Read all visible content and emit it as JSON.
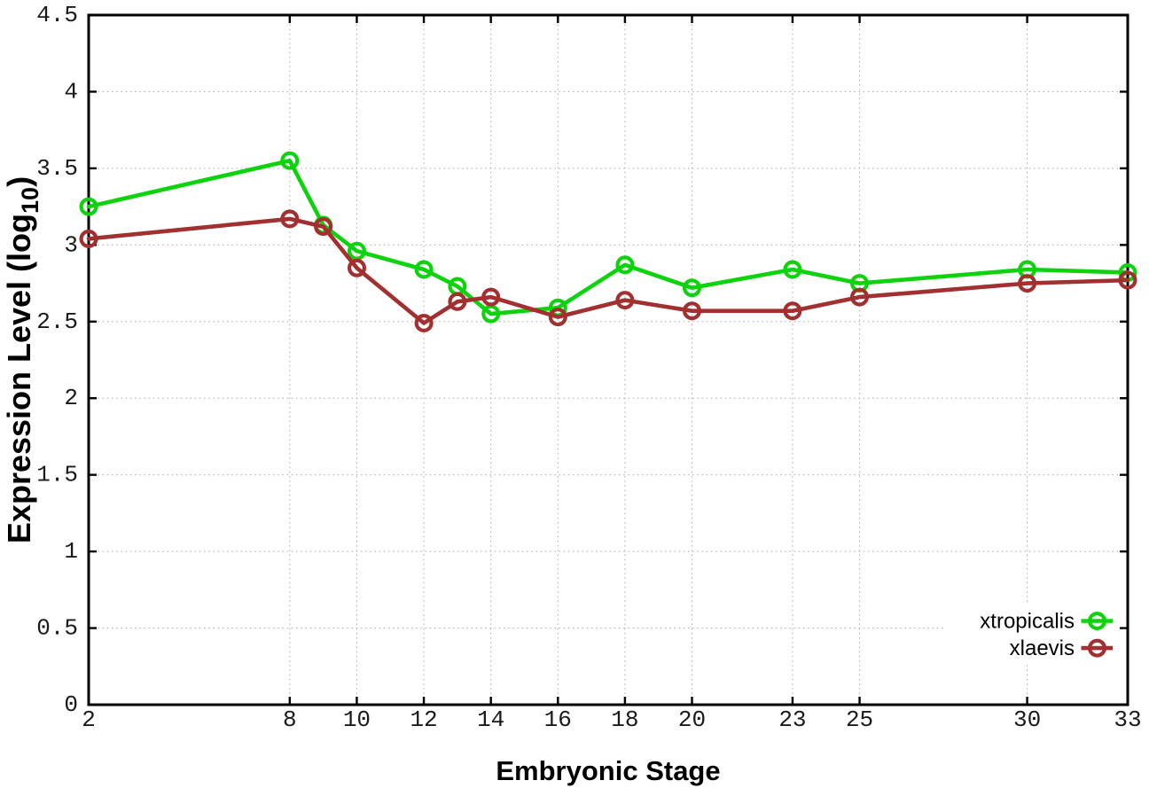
{
  "chart_data": {
    "type": "line",
    "title": "",
    "xlabel": "Embryonic Stage",
    "ylabel": "Expression Level (log10)",
    "ylabel_main": "Expression Level (log",
    "ylabel_sub": "10",
    "ylabel_close": ")",
    "x": [
      2,
      8,
      9,
      10,
      12,
      13,
      14,
      16,
      18,
      20,
      23,
      25,
      30,
      33
    ],
    "series": [
      {
        "name": "xtropicalis",
        "color": "#0cd30c",
        "marker": "open-circle",
        "values": [
          3.25,
          3.55,
          3.13,
          2.96,
          2.84,
          2.73,
          2.55,
          2.59,
          2.87,
          2.72,
          2.84,
          2.75,
          2.84,
          2.82
        ]
      },
      {
        "name": "xlaevis",
        "color": "#a23030",
        "marker": "open-circle",
        "values": [
          3.04,
          3.17,
          3.12,
          2.85,
          2.49,
          2.63,
          2.66,
          2.53,
          2.64,
          2.57,
          2.57,
          2.66,
          2.75,
          2.77
        ]
      }
    ],
    "xticks": [
      2,
      8,
      10,
      12,
      14,
      16,
      18,
      20,
      23,
      25,
      30,
      33
    ],
    "yticks": [
      0,
      0.5,
      1,
      1.5,
      2,
      2.5,
      3,
      3.5,
      4,
      4.5
    ],
    "ytick_labels": [
      "0",
      "0.5",
      "1",
      "1.5",
      "2",
      "2.5",
      "3",
      "3.5",
      "4",
      "4.5"
    ],
    "xlim": [
      2,
      33
    ],
    "ylim": [
      0,
      4.5
    ],
    "grid": true,
    "legend": {
      "position": "inside-bottom-right",
      "entries": [
        "xtropicalis",
        "xlaevis"
      ]
    }
  },
  "styles": {
    "background": "#ffffff",
    "border_color": "#000000",
    "grid_color": "#b5b5b5",
    "tick_color": "#000000",
    "text_color": "#000000"
  }
}
